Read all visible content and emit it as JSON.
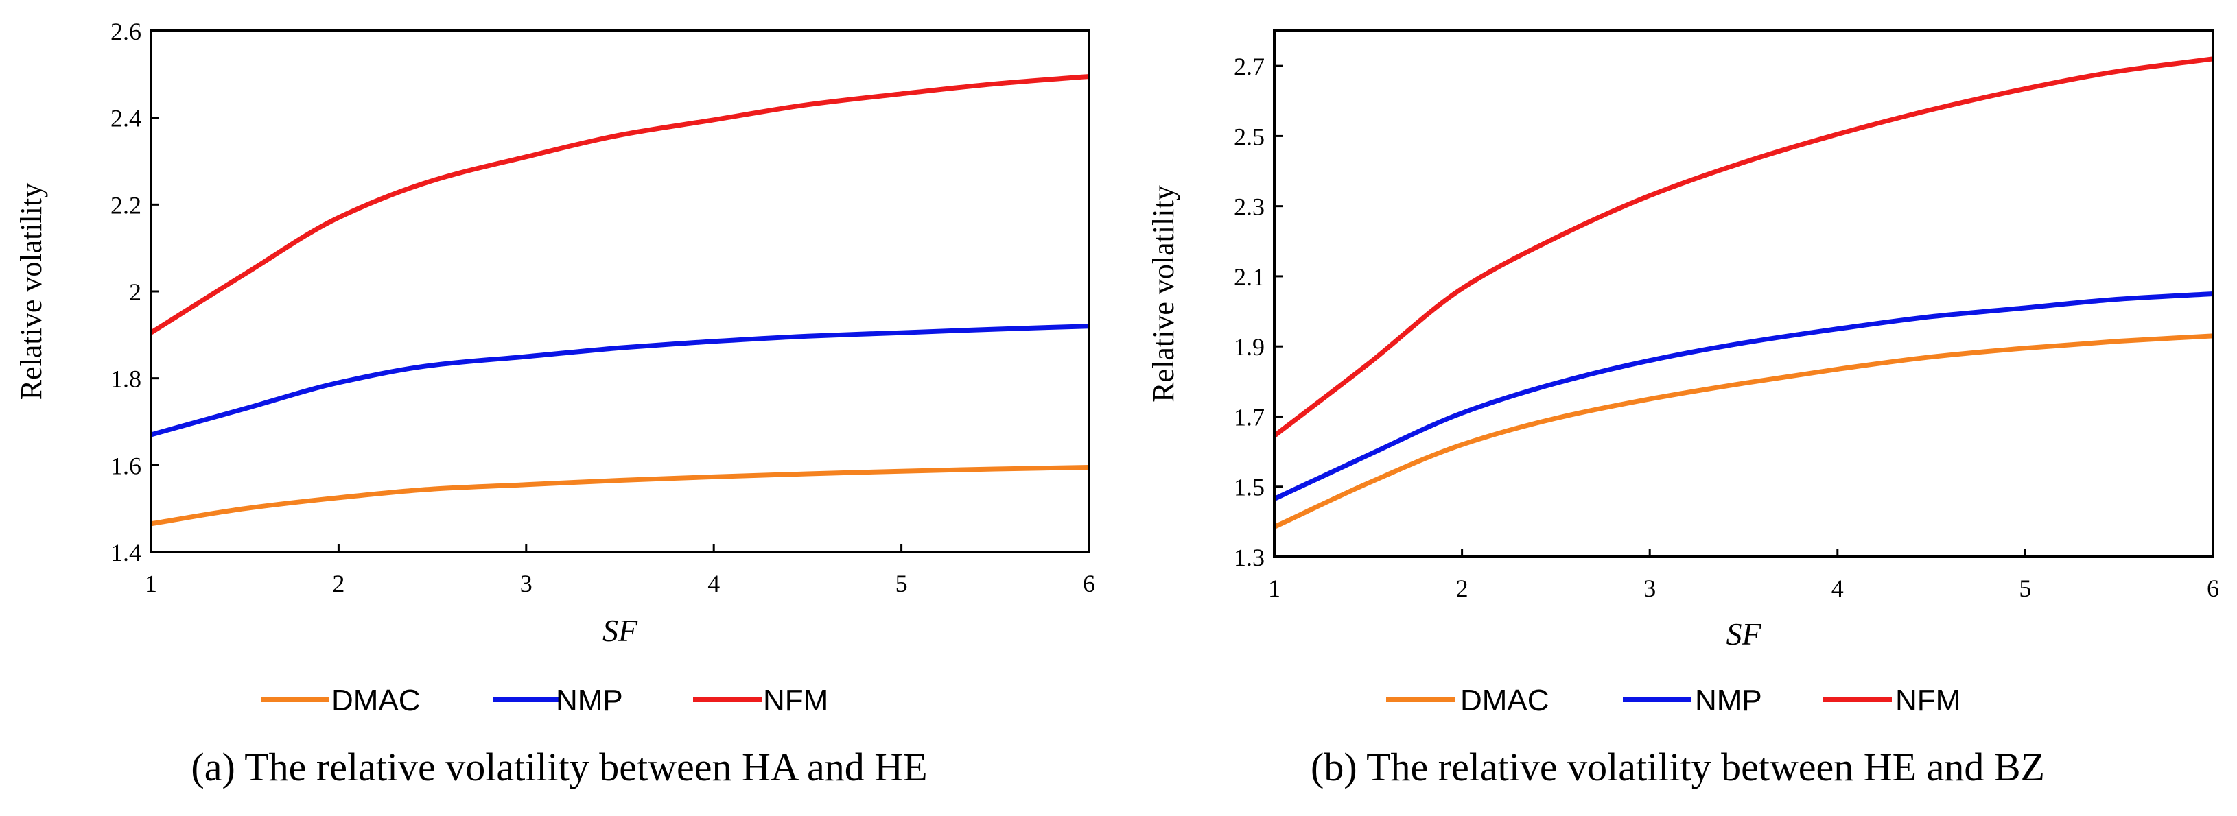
{
  "chart_data": [
    {
      "type": "line",
      "caption": "(a) The relative volatility between HA and HE",
      "xlabel": "SF",
      "ylabel": "Relative volatility",
      "xlim": [
        1,
        6
      ],
      "ylim": [
        1.4,
        2.6
      ],
      "xticks": [
        "1",
        "2",
        "3",
        "4",
        "5",
        "6"
      ],
      "yticks": [
        "1.4",
        "1.6",
        "1.8",
        "2",
        "2.2",
        "2.4",
        "2.6"
      ],
      "legend_position": "bottom",
      "series": [
        {
          "name": "DMAC",
          "color": "#F5821F",
          "x": [
            1,
            1.5,
            2,
            2.5,
            3,
            3.5,
            4,
            4.5,
            5,
            5.5,
            6
          ],
          "values": [
            1.465,
            1.5,
            1.525,
            1.545,
            1.555,
            1.565,
            1.573,
            1.58,
            1.586,
            1.591,
            1.595
          ]
        },
        {
          "name": "NMP",
          "color": "#0A14E6",
          "x": [
            1,
            1.5,
            2,
            2.5,
            3,
            3.5,
            4,
            4.5,
            5,
            5.5,
            6
          ],
          "values": [
            1.67,
            1.73,
            1.79,
            1.83,
            1.85,
            1.87,
            1.885,
            1.897,
            1.905,
            1.913,
            1.92
          ]
        },
        {
          "name": "NFM",
          "color": "#EE1C1C",
          "x": [
            1,
            1.5,
            2,
            2.5,
            3,
            3.5,
            4,
            4.5,
            5,
            5.5,
            6
          ],
          "values": [
            1.905,
            2.04,
            2.17,
            2.255,
            2.31,
            2.36,
            2.395,
            2.43,
            2.455,
            2.478,
            2.495
          ]
        }
      ]
    },
    {
      "type": "line",
      "caption": "(b) The relative volatility between HE and BZ",
      "xlabel": "SF",
      "ylabel": "Relative volatility",
      "xlim": [
        1,
        6
      ],
      "ylim": [
        1.3,
        2.8
      ],
      "xticks": [
        "1",
        "2",
        "3",
        "4",
        "5",
        "6"
      ],
      "yticks": [
        "1.3",
        "1.5",
        "1.7",
        "1.9",
        "2.1",
        "2.3",
        "2.5",
        "2.7"
      ],
      "legend_position": "bottom",
      "series": [
        {
          "name": "DMAC",
          "color": "#F5821F",
          "x": [
            1,
            1.5,
            2,
            2.5,
            3,
            3.5,
            4,
            4.5,
            5,
            5.5,
            6
          ],
          "values": [
            1.385,
            1.51,
            1.62,
            1.695,
            1.75,
            1.795,
            1.835,
            1.87,
            1.895,
            1.915,
            1.93
          ]
        },
        {
          "name": "NMP",
          "color": "#0A14E6",
          "x": [
            1,
            1.5,
            2,
            2.5,
            3,
            3.5,
            4,
            4.5,
            5,
            5.5,
            6
          ],
          "values": [
            1.465,
            1.59,
            1.71,
            1.795,
            1.86,
            1.91,
            1.95,
            1.985,
            2.01,
            2.035,
            2.05
          ]
        },
        {
          "name": "NFM",
          "color": "#EE1C1C",
          "x": [
            1,
            1.5,
            2,
            2.5,
            3,
            3.5,
            4,
            4.5,
            5,
            5.5,
            6
          ],
          "values": [
            1.645,
            1.85,
            2.065,
            2.21,
            2.33,
            2.425,
            2.505,
            2.575,
            2.635,
            2.685,
            2.72
          ]
        }
      ]
    }
  ]
}
